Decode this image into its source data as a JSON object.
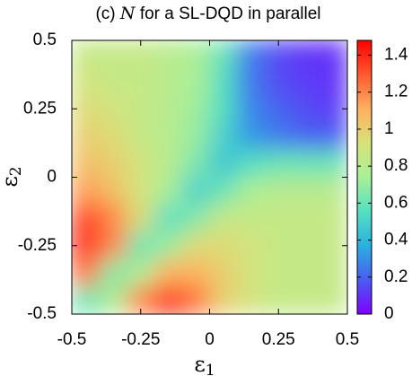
{
  "chart_data": {
    "type": "heatmap",
    "title": {
      "prefix": "(c) ",
      "symbol": "N",
      "suffix": " for a SL-DQD in parallel"
    },
    "xlabel": {
      "symbol": "ε",
      "subscript": "1"
    },
    "ylabel": {
      "symbol": "ε",
      "subscript": "2"
    },
    "x": [
      -0.45,
      -0.35,
      -0.25,
      -0.15,
      -0.05,
      0.05,
      0.15,
      0.25,
      0.35,
      0.45
    ],
    "y": [
      0.45,
      0.35,
      0.25,
      0.15,
      0.05,
      -0.05,
      -0.15,
      -0.25,
      -0.35,
      -0.45
    ],
    "z": [
      [
        0.85,
        0.85,
        0.85,
        0.8,
        0.75,
        0.6,
        0.25,
        0.15,
        0.1,
        0.1
      ],
      [
        0.9,
        0.85,
        0.85,
        0.8,
        0.75,
        0.55,
        0.25,
        0.15,
        0.12,
        0.1
      ],
      [
        0.95,
        0.9,
        0.85,
        0.8,
        0.72,
        0.55,
        0.28,
        0.2,
        0.15,
        0.12
      ],
      [
        1.0,
        0.95,
        0.85,
        0.8,
        0.7,
        0.5,
        0.32,
        0.25,
        0.2,
        0.18
      ],
      [
        1.05,
        1.0,
        0.9,
        0.8,
        0.65,
        0.45,
        0.55,
        0.6,
        0.6,
        0.6
      ],
      [
        1.15,
        1.05,
        0.9,
        0.75,
        0.5,
        0.6,
        0.75,
        0.8,
        0.8,
        0.8
      ],
      [
        1.35,
        1.2,
        0.95,
        0.55,
        0.65,
        0.85,
        0.85,
        0.85,
        0.85,
        0.85
      ],
      [
        1.4,
        1.2,
        0.6,
        0.7,
        0.95,
        0.95,
        0.9,
        0.85,
        0.85,
        0.85
      ],
      [
        1.25,
        0.65,
        0.75,
        1.1,
        1.1,
        1.0,
        0.9,
        0.85,
        0.85,
        0.85
      ],
      [
        0.6,
        0.75,
        1.2,
        1.4,
        1.25,
        1.0,
        0.9,
        0.85,
        0.85,
        0.85
      ]
    ],
    "xlim": [
      -0.5,
      0.5
    ],
    "ylim": [
      -0.5,
      0.5
    ],
    "xticks": [
      -0.5,
      -0.25,
      0,
      0.25,
      0.5
    ],
    "yticks": [
      -0.5,
      -0.25,
      0,
      0.25,
      0.5
    ],
    "clim": [
      0,
      1.48
    ],
    "cticks": [
      0,
      0.2,
      0.4,
      0.6,
      0.8,
      1,
      1.2,
      1.4
    ],
    "colormap": [
      "#7f00ff",
      "#4a5cf2",
      "#2ab0e0",
      "#55e0c0",
      "#a8f098",
      "#d8e27a",
      "#ffb060",
      "#ff5a2e",
      "#ff0000"
    ]
  }
}
